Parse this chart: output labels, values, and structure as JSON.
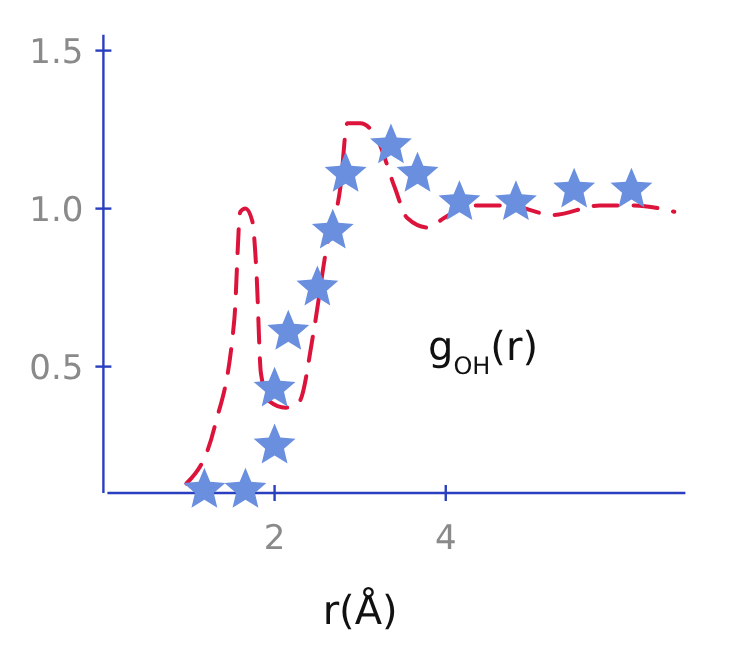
{
  "chart_data": {
    "type": "scatter",
    "xlabel": "r(Å)",
    "xlim": [
      0,
      6.8
    ],
    "ylim": [
      0.1,
      1.55
    ],
    "xticks": [
      2,
      4
    ],
    "yticks": [
      0.5,
      {
        "value": 1,
        "label": "1.0"
      },
      1.5
    ],
    "grid": false,
    "legend": false,
    "annotations": [
      "g$_{OH}$(r)"
    ],
    "series": [
      {
        "type": "line",
        "color": "#dc143c",
        "line_style": "dashed",
        "marker": "none",
        "x": [
          0.97,
          1.3,
          1.53,
          1.6,
          1.66,
          1.74,
          1.79,
          1.84,
          1.94,
          2.13,
          2.29,
          2.45,
          2.61,
          2.77,
          2.85,
          3.0,
          3.2,
          3.4,
          3.55,
          3.79,
          3.98,
          4.25,
          4.72,
          5.26,
          5.8,
          6.2,
          6.67
        ],
        "values": [
          0.13,
          0.31,
          0.65,
          0.99,
          1.0,
          0.96,
          0.79,
          0.48,
          0.39,
          0.37,
          0.39,
          0.6,
          0.88,
          1.07,
          1.27,
          1.27,
          1.22,
          1.07,
          0.97,
          0.94,
          0.97,
          1.01,
          1.01,
          0.98,
          1.01,
          1.01,
          0.99
        ]
      },
      {
        "color": "#6a8fdf",
        "marker": "star",
        "x": [
          1.18,
          1.66,
          2.0,
          2.0,
          2.16,
          2.5,
          2.68,
          2.83,
          3.36,
          3.67,
          4.16,
          4.82,
          5.5,
          6.17
        ],
        "values": [
          0.11,
          0.11,
          0.25,
          0.43,
          0.61,
          0.75,
          0.93,
          1.11,
          1.2,
          1.11,
          1.02,
          1.02,
          1.06,
          1.06
        ]
      }
    ]
  }
}
